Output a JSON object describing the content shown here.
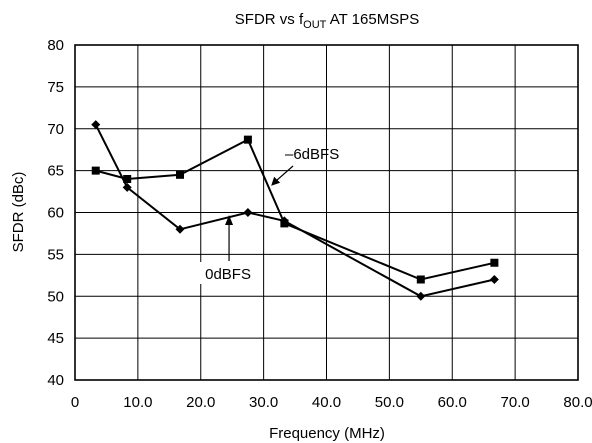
{
  "chart_data": {
    "type": "line",
    "title_main": "SFDR vs f",
    "title_sub": "OUT",
    "title_tail": " AT 165MSPS",
    "xlabel": "Frequency (MHz)",
    "ylabel": "SFDR (dBc)",
    "xlim": [
      0,
      80
    ],
    "ylim": [
      40,
      80
    ],
    "x_ticks": [
      0,
      10,
      20,
      30,
      40,
      50,
      60,
      70,
      80
    ],
    "x_tick_labels": [
      "0",
      "10.0",
      "20.0",
      "30.0",
      "40.0",
      "50.0",
      "60.0",
      "70.0",
      "80.0"
    ],
    "y_ticks": [
      40,
      45,
      50,
      55,
      60,
      65,
      70,
      75,
      80
    ],
    "y_tick_labels": [
      "40",
      "45",
      "50",
      "55",
      "60",
      "65",
      "70",
      "75",
      "80"
    ],
    "grid": true,
    "series": [
      {
        "name": "0dBFS",
        "marker": "diamond",
        "x": [
          3.3,
          8.3,
          16.7,
          27.5,
          33.3,
          55,
          66.7
        ],
        "y": [
          70.5,
          63,
          58,
          60,
          59,
          50,
          52
        ]
      },
      {
        "name": "–6dBFS",
        "marker": "square",
        "x": [
          3.3,
          8.3,
          16.7,
          27.5,
          33.3,
          55,
          66.7
        ],
        "y": [
          65,
          64,
          64.5,
          68.7,
          58.7,
          52,
          54
        ]
      }
    ],
    "annotations": [
      {
        "text": "–6dBFS",
        "series": 1,
        "anchor_x": 31.2,
        "anchor_y": 63.2
      },
      {
        "text": "0dBFS",
        "series": 0,
        "anchor_x": 24.5,
        "anchor_y": 59.7
      }
    ]
  }
}
